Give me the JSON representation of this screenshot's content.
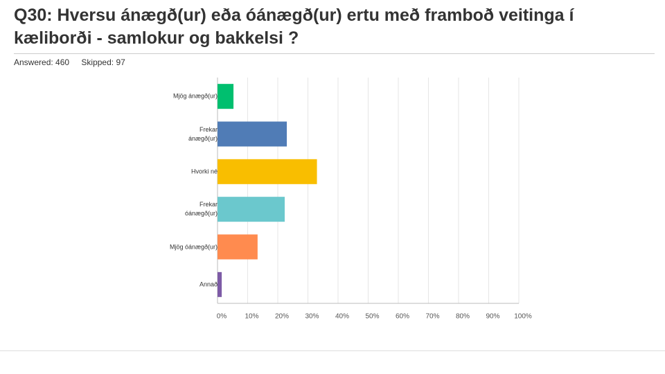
{
  "header": {
    "answered": "Answered: 460",
    "skipped": "Skipped: 97"
  },
  "chart_data": {
    "type": "bar",
    "orientation": "horizontal",
    "title": "Q30: Hversu  ánægð(ur) eða óánægð(ur) ertu með framboð veitinga í kæliborði - samlokur og bakkelsi ?",
    "categories": [
      "Mjög ánægð(ur)",
      "Frekar\nánægð(ur)",
      "Hvorki né",
      "Frekar\nóánægð(ur)",
      "Mjög óánægð(ur)",
      "Annað"
    ],
    "values": [
      5.3,
      23,
      33,
      22.3,
      13.3,
      1.4
    ],
    "colors": [
      "#00bf6f",
      "#507cb6",
      "#f9be00",
      "#6bc8cd",
      "#ff8b4f",
      "#7d5ba6"
    ],
    "xlim": [
      0,
      100
    ],
    "xticks": [
      {
        "value": 0,
        "label": "0%"
      },
      {
        "value": 10,
        "label": "10%"
      },
      {
        "value": 20,
        "label": "20%"
      },
      {
        "value": 30,
        "label": "30%"
      },
      {
        "value": 40,
        "label": "40%"
      },
      {
        "value": 50,
        "label": "50%"
      },
      {
        "value": 60,
        "label": "60%"
      },
      {
        "value": 70,
        "label": "70%"
      },
      {
        "value": 80,
        "label": "80%"
      },
      {
        "value": 90,
        "label": "90%"
      },
      {
        "value": 100,
        "label": "100%"
      }
    ],
    "grid": true
  }
}
